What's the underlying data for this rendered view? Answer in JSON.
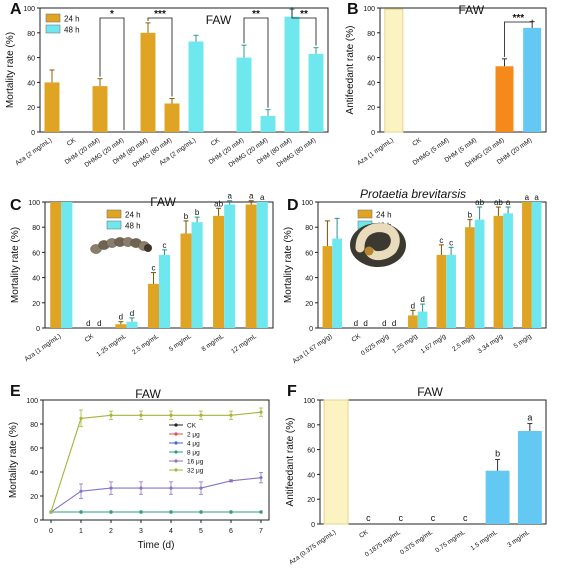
{
  "colors": {
    "h24": "#e0a424",
    "h48": "#6ee8ee",
    "aza_light": "#fbf3c2",
    "orange": "#f58a1b",
    "skyblue": "#63c8f2",
    "axis": "#222222",
    "CK": "#222222",
    "2ug": "#e0504a",
    "4ug": "#4a66d8",
    "8ug": "#2aa07a",
    "16ug": "#8a73c9",
    "32ug": "#a8b43a"
  },
  "chart_data": [
    {
      "panel": "A",
      "type": "bar",
      "title": "FAW",
      "ylabel": "Mortality rate (%)",
      "ylim": [
        0,
        100
      ],
      "yticks": [
        "0",
        "20",
        "40",
        "60",
        "80",
        "100"
      ],
      "legend": [
        "24 h",
        "48 h"
      ],
      "categories": [
        "Aza (2 mg/mL)",
        "CK",
        "DHM (20 mM)",
        "DHMG (20 mM)",
        "DHM (80 mM)",
        "DHMG (80 mM)",
        "Aza (2 mg/mL)",
        "CK",
        "DHM (20 mM)",
        "DHMG (20 mM)",
        "DHM (80 mM)",
        "DHMG (80 mM)"
      ],
      "series": [
        {
          "name": "24 h",
          "values": [
            40,
            0,
            37,
            0,
            80,
            23,
            null,
            null,
            null,
            null,
            null,
            null
          ],
          "errors": [
            10,
            0,
            6,
            0,
            8,
            4,
            null,
            null,
            null,
            null,
            null,
            null
          ]
        },
        {
          "name": "48 h",
          "values": [
            null,
            null,
            null,
            null,
            null,
            null,
            73,
            0,
            60,
            13,
            93,
            63
          ],
          "errors": [
            null,
            null,
            null,
            null,
            null,
            null,
            5,
            0,
            10,
            5,
            6,
            5
          ]
        }
      ],
      "significance": [
        {
          "label": "*",
          "from": 2,
          "to": 3
        },
        {
          "label": "***",
          "from": 4,
          "to": 5
        },
        {
          "label": "**",
          "from": 8,
          "to": 9
        },
        {
          "label": "**",
          "from": 10,
          "to": 11
        }
      ]
    },
    {
      "panel": "B",
      "type": "bar",
      "title": "FAW",
      "ylabel": "Antifeedant rate (%)",
      "ylim": [
        0,
        100
      ],
      "yticks": [
        "0",
        "20",
        "40",
        "60",
        "80",
        "100"
      ],
      "categories": [
        "Aza (1 mg/mL)",
        "CK",
        "DHMG (5 mM)",
        "DHM (5 mM)",
        "DHMG (20 mM)",
        "DHM (20 mM)"
      ],
      "values": [
        99,
        0,
        0,
        0,
        53,
        84
      ],
      "errors": [
        0,
        0,
        0,
        0,
        6,
        5
      ],
      "significance": [
        {
          "label": "***",
          "from": 4,
          "to": 5
        }
      ]
    },
    {
      "panel": "C",
      "type": "bar",
      "title": "FAW",
      "ylabel": "Mortality rate (%)",
      "ylim": [
        0,
        100
      ],
      "yticks": [
        "0",
        "20",
        "40",
        "60",
        "80",
        "100"
      ],
      "legend": [
        "24 h",
        "48 h"
      ],
      "categories": [
        "Aza (1 mg/mL)",
        "CK",
        "1.25 mg/mL",
        "2.5 mg/mL",
        "5 mg/mL",
        "8 mg/mL",
        "12 mg/mL"
      ],
      "series": [
        {
          "name": "24 h",
          "values": [
            100,
            0,
            3,
            35,
            75,
            89,
            98
          ],
          "errors": [
            0,
            0,
            2,
            9,
            10,
            6,
            3
          ],
          "letters": [
            "",
            "d",
            "d",
            "c",
            "b",
            "ab",
            "a"
          ]
        },
        {
          "name": "48 h",
          "values": [
            100,
            0,
            5,
            58,
            84,
            98,
            100
          ],
          "errors": [
            0,
            0,
            3,
            4,
            4,
            3,
            0
          ],
          "letters": [
            "",
            "d",
            "d",
            "c",
            "b",
            "a",
            "a"
          ]
        }
      ]
    },
    {
      "panel": "D",
      "type": "bar",
      "title": "Protaetia brevitarsis",
      "ylabel": "Mortality rate (%)",
      "ylim": [
        0,
        100
      ],
      "yticks": [
        "0",
        "20",
        "40",
        "60",
        "80",
        "100"
      ],
      "legend": [
        "24 h",
        "48 h"
      ],
      "categories": [
        "Aza (1.67 mg/g)",
        "CK",
        "0.625 mg/g",
        "1.25 mg/g",
        "1.67 mg/g",
        "2.5 mg/g",
        "3.34 mg/g",
        "5 mg/g"
      ],
      "series": [
        {
          "name": "24 h",
          "values": [
            65,
            0,
            0,
            10,
            58,
            80,
            89,
            100
          ],
          "errors": [
            20,
            0,
            0,
            4,
            8,
            6,
            7,
            0
          ],
          "letters": [
            "",
            "d",
            "d",
            "d",
            "c",
            "b",
            "ab",
            "a"
          ]
        },
        {
          "name": "48 h",
          "values": [
            71,
            0,
            0,
            13,
            58,
            86,
            91,
            100
          ],
          "errors": [
            16,
            0,
            0,
            6,
            6,
            10,
            5,
            0
          ],
          "letters": [
            "",
            "d",
            "d",
            "d",
            "c",
            "ab",
            "a",
            "a"
          ]
        }
      ]
    },
    {
      "panel": "E",
      "type": "line",
      "title": "FAW",
      "xlabel": "Time (d)",
      "ylabel": "Mortality rate (%)",
      "xlim": [
        0,
        7
      ],
      "ylim": [
        0,
        100
      ],
      "xticks": [
        "0",
        "1",
        "2",
        "3",
        "4",
        "5",
        "6",
        "7"
      ],
      "yticks": [
        "0",
        "20",
        "40",
        "60",
        "80",
        "100"
      ],
      "x": [
        0,
        1,
        2,
        3,
        4,
        5,
        6,
        7
      ],
      "series": [
        {
          "name": "CK",
          "values": [
            0,
            0,
            0,
            0,
            0,
            0,
            0,
            0
          ]
        },
        {
          "name": "2 μg",
          "values": [
            0,
            0,
            0,
            0,
            0,
            0,
            0,
            0
          ]
        },
        {
          "name": "4 μg",
          "values": [
            0,
            0,
            0,
            0,
            0,
            0,
            0,
            0
          ]
        },
        {
          "name": "8 μg",
          "values": [
            0,
            0,
            0,
            0,
            0,
            0,
            0,
            0
          ]
        },
        {
          "name": "16 μg",
          "values": [
            0,
            20,
            23,
            23,
            23,
            23,
            30,
            33
          ],
          "errors": [
            0,
            7,
            6,
            6,
            6,
            6,
            1,
            5
          ]
        },
        {
          "name": "32 μg",
          "values": [
            0,
            90,
            93,
            93,
            93,
            93,
            93,
            96
          ],
          "errors": [
            0,
            8,
            4,
            4,
            4,
            4,
            4,
            4
          ]
        }
      ]
    },
    {
      "panel": "F",
      "type": "bar",
      "title": "FAW",
      "ylabel": "Antifeedant rate (%)",
      "ylim": [
        0,
        100
      ],
      "yticks": [
        "0",
        "20",
        "40",
        "60",
        "80",
        "100"
      ],
      "categories": [
        "Aza (0.375 mg/mL)",
        "CK",
        "0.1875 mg/mL",
        "0.375 mg/mL",
        "0.75 mg/mL",
        "1.5 mg/mL",
        "3 mg/mL"
      ],
      "values": [
        100,
        0,
        0,
        0,
        0,
        43,
        75
      ],
      "errors": [
        0,
        0,
        0,
        0,
        0,
        9,
        6
      ],
      "letters": [
        "",
        "c",
        "c",
        "c",
        "c",
        "b",
        "a"
      ]
    }
  ]
}
